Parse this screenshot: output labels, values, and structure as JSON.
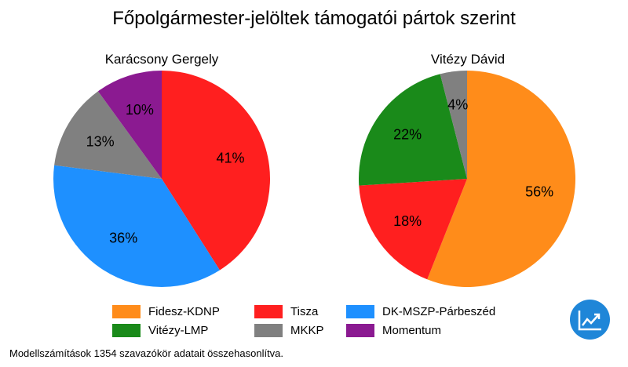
{
  "title": "Főpolgármester-jelöltek támogatói pártok szerint",
  "footnote": "Modellszámítások 1354 szavazókör adatait összehasonlítva.",
  "logo": {
    "icon": "trend-chart-icon",
    "color": "#1f86d8"
  },
  "chart_data": [
    {
      "type": "pie",
      "title": "Karácsony Gergely",
      "slices": [
        {
          "label": "Tisza",
          "value": 41,
          "display": "41%",
          "color": "#ff1f1f"
        },
        {
          "label": "DK-MSZP-Párbeszéd",
          "value": 36,
          "display": "36%",
          "color": "#1e90ff"
        },
        {
          "label": "MKKP",
          "value": 13,
          "display": "13%",
          "color": "#808080"
        },
        {
          "label": "Momentum",
          "value": 10,
          "display": "10%",
          "color": "#8b1a91"
        }
      ]
    },
    {
      "type": "pie",
      "title": "Vitézy Dávid",
      "slices": [
        {
          "label": "Fidesz-KDNP",
          "value": 56,
          "display": "56%",
          "color": "#ff8c1a"
        },
        {
          "label": "Tisza",
          "value": 18,
          "display": "18%",
          "color": "#ff1f1f"
        },
        {
          "label": "Vitézy-LMP",
          "value": 22,
          "display": "22%",
          "color": "#1a8a1a"
        },
        {
          "label": "MKKP",
          "value": 4,
          "display": "4%",
          "color": "#808080"
        }
      ]
    }
  ],
  "legend": [
    {
      "label": "Fidesz-KDNP",
      "color": "#ff8c1a"
    },
    {
      "label": "Tisza",
      "color": "#ff1f1f"
    },
    {
      "label": "DK-MSZP-Párbeszéd",
      "color": "#1e90ff"
    },
    {
      "label": "Vitézy-LMP",
      "color": "#1a8a1a"
    },
    {
      "label": "MKKP",
      "color": "#808080"
    },
    {
      "label": "Momentum",
      "color": "#8b1a91"
    }
  ]
}
